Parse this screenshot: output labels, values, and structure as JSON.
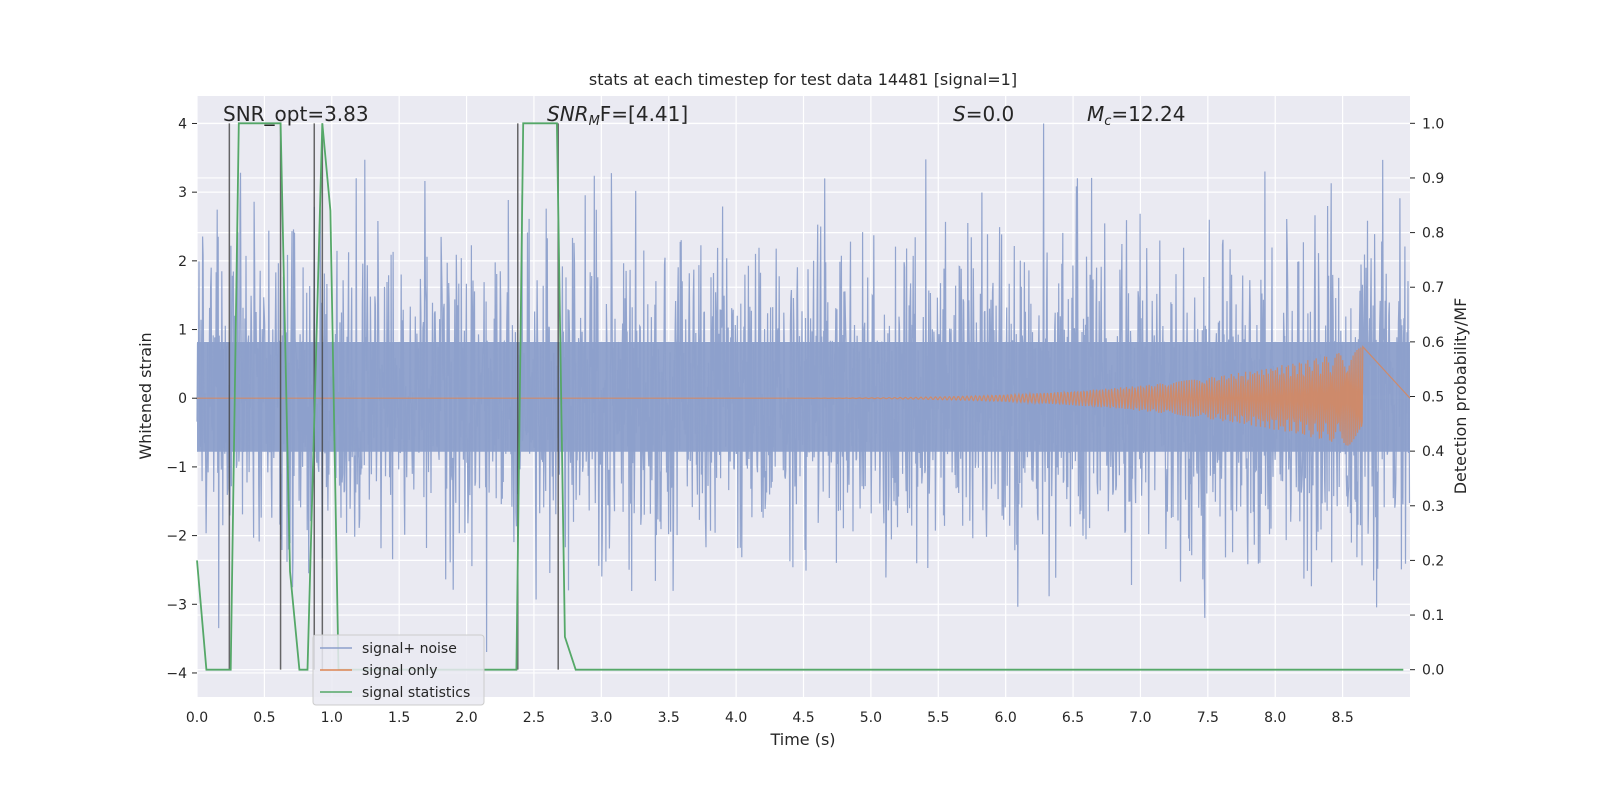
{
  "chart_data": {
    "type": "line",
    "title": "stats at each timestep for test data 14481 [signal=1]",
    "xlabel": "Time (s)",
    "ylabel": "Whitened strain",
    "y2label": "Detection probability/MF",
    "xlim": [
      0.0,
      9.0
    ],
    "ylim": [
      -4.35,
      4.4
    ],
    "y2lim": [
      -0.05,
      1.05
    ],
    "xticks": [
      "0.0",
      "0.5",
      "1.0",
      "1.5",
      "2.0",
      "2.5",
      "3.0",
      "3.5",
      "4.0",
      "4.5",
      "5.0",
      "5.5",
      "6.0",
      "6.5",
      "7.0",
      "7.5",
      "8.0",
      "8.5"
    ],
    "yticks": [
      "4",
      "3",
      "2",
      "1",
      "0",
      "−1",
      "−2",
      "−3",
      "−4"
    ],
    "y2ticks": [
      "1.0",
      "0.9",
      "0.8",
      "0.7",
      "0.6",
      "0.5",
      "0.4",
      "0.3",
      "0.2",
      "0.1",
      "0.0"
    ],
    "grid": true,
    "legend_placement": "lower-left",
    "annotations": {
      "snr_opt": "SNR_opt=3.83",
      "snr_mf_main": "SNR",
      "snr_mf_sub": "M",
      "snr_mf_rest": "F=[4.41]",
      "s_main": "S",
      "s_rest": "=0.0",
      "mc_main": "M",
      "mc_sub": "c",
      "mc_rest": "=12.24"
    },
    "series": [
      {
        "name": "signal+ noise",
        "color": "#8da0cb",
        "description_values": "whitened strain noise, typical |y| up to ~2.3, peaks to 4.0 and -3.9",
        "envelope": {
          "upper": 2.3,
          "lower": -2.4,
          "peak_max": 4.0,
          "peak_min": -3.95
        }
      },
      {
        "name": "signal only",
        "color": "#dd8452",
        "chirp": {
          "start": 4.0,
          "end": 8.65,
          "final_amplitude": 0.75
        }
      },
      {
        "name": "signal statistics",
        "color": "#55a868",
        "x": [
          0.0,
          0.07,
          0.25,
          0.31,
          0.62,
          0.69,
          0.76,
          0.82,
          0.93,
          0.99,
          1.05,
          1.1,
          2.37,
          2.42,
          2.67,
          2.73,
          2.81,
          3.25,
          8.95
        ],
        "y": [
          0.2,
          0.0,
          0.0,
          1.0,
          1.0,
          0.18,
          0.0,
          0.0,
          1.0,
          0.84,
          0.0,
          0.0,
          0.0,
          1.0,
          1.0,
          0.06,
          0.0,
          0.0,
          0.0
        ]
      }
    ],
    "vertical_markers": [
      0.24,
      0.62,
      0.87,
      0.93,
      2.38,
      2.68
    ]
  }
}
